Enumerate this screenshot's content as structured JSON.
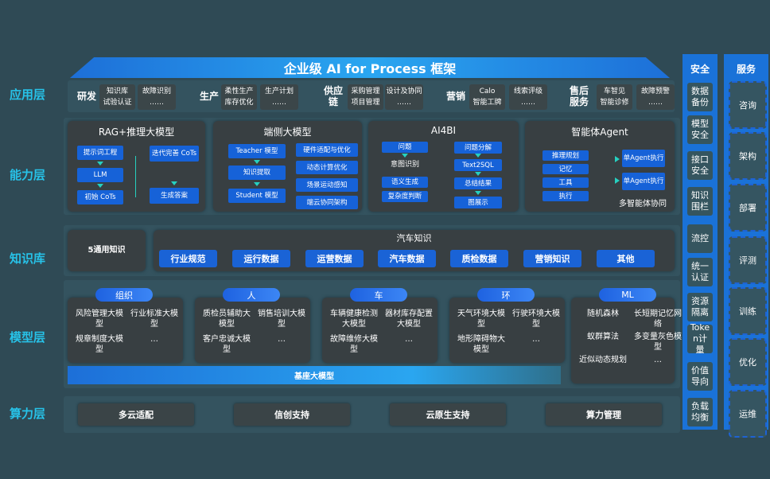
{
  "title": "企业级 AI for Process 框架",
  "row_labels": [
    "应用层",
    "能力层",
    "知识库",
    "模型层",
    "算力层"
  ],
  "application": [
    {
      "name": "研发",
      "boxes": [
        [
          "知识库",
          "试验认证"
        ],
        [
          "故障识别",
          "……"
        ]
      ]
    },
    {
      "name": "生产",
      "boxes": [
        [
          "柔性生产",
          "库存优化"
        ],
        [
          "生产计划",
          "……"
        ]
      ]
    },
    {
      "name": "供应链",
      "boxes": [
        [
          "采购管理",
          "项目管理"
        ],
        [
          "设计及协同",
          "……"
        ]
      ]
    },
    {
      "name": "营销",
      "boxes": [
        [
          "Calo",
          "智能工牌"
        ],
        [
          "线索评级",
          "……"
        ]
      ]
    },
    {
      "name": "售后服务",
      "boxes": [
        [
          "车智见",
          "智能诊修"
        ],
        [
          "故障预警",
          "……"
        ]
      ]
    }
  ],
  "capability": {
    "rag": {
      "title": "RAG+推理大模型",
      "left": [
        "提示词工程",
        "LLM",
        "初始 CoTs"
      ],
      "right": [
        "迭代完善 CoTs",
        "生成答案"
      ]
    },
    "edge": {
      "title": "端侧大模型",
      "left": [
        "Teacher 模型",
        "知识提取",
        "Student 模型"
      ],
      "right": [
        "硬件适配与优化",
        "动态计算优化",
        "场景运动感知",
        "端云协同架构"
      ]
    },
    "ai4bi": {
      "title": "AI4BI",
      "left": [
        "问题",
        "意图识别",
        "语义生成",
        "复杂度判断"
      ],
      "right": [
        "问题分解",
        "Text2SQL",
        "总结结果",
        "图展示"
      ]
    },
    "agent": {
      "title": "智能体Agent",
      "left": [
        "推理规划",
        "记忆",
        "工具",
        "执行"
      ],
      "right": [
        "单Agent执行",
        "单Agent执行"
      ],
      "footer": "多智能体协同"
    }
  },
  "knowledge": {
    "general": "5通用知识",
    "auto_title": "汽车知识",
    "chips": [
      "行业规范",
      "运行数据",
      "运营数据",
      "汽车数据",
      "质检数据",
      "营销知识",
      "其他"
    ]
  },
  "models": [
    {
      "name": "组织",
      "items": [
        "风险管理大模型",
        "行业标准大模型",
        "规章制度大模型",
        "…"
      ]
    },
    {
      "name": "人",
      "items": [
        "质检员辅助大模型",
        "销售培训大模型",
        "客户忠诚大模型",
        "…"
      ]
    },
    {
      "name": "车",
      "items": [
        "车辆健康检测大模型",
        "器材库存配置大模型",
        "故障维修大模型",
        "…"
      ]
    },
    {
      "name": "环",
      "items": [
        "天气环境大模型",
        "行驶环境大模型",
        "地形障碍物大模型",
        "…"
      ]
    },
    {
      "name": "ML",
      "items": [
        "随机森林",
        "长短期记忆网络",
        "蚁群算法",
        "多变量灰色模型",
        "近似动态规划",
        "…"
      ]
    }
  ],
  "base_model": "基座大模型",
  "compute": [
    "多云适配",
    "信创支持",
    "云原生支持",
    "算力管理"
  ],
  "security": {
    "title": "安全",
    "items": [
      "数据备份",
      "模型安全",
      "接口安全",
      "知识围栏",
      "流控",
      "统一认证",
      "资源隔离",
      "Token计量",
      "价值导向",
      "负载均衡"
    ]
  },
  "services": {
    "title": "服务",
    "items": [
      "咨询",
      "架构",
      "部署",
      "评测",
      "训练",
      "优化",
      "运维"
    ]
  },
  "colors": {
    "background": "#2f4a55",
    "accent": "#27c2e8",
    "block": "#1662d8"
  }
}
